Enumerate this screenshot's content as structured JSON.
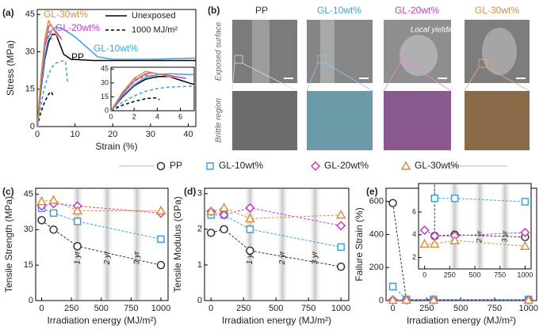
{
  "chart_data": [
    {
      "type": "line",
      "panel": "(a)",
      "xlabel": "Strain (%)",
      "ylabel": "Stress (MPa)",
      "xlim": [
        0,
        42
      ],
      "ylim": [
        0,
        47
      ],
      "xticks": [
        0,
        10,
        20,
        30,
        40
      ],
      "yticks": [
        0,
        15,
        30,
        45
      ],
      "legend": [
        {
          "label": "Unexposed",
          "dashed": false
        },
        {
          "label": "1000 MJ/m²",
          "dashed": true
        }
      ],
      "series": [
        {
          "name": "PP",
          "color": "#000000",
          "unexposed": {
            "x": [
              0,
              1,
              2,
              3,
              4,
              5,
              6,
              7,
              9,
              15,
              25,
              35,
              42
            ],
            "values": [
              0,
              15,
              27,
              34,
              37,
              37,
              33,
              29,
              27,
              26.5,
              26.5,
              26.5,
              26.5
            ]
          },
          "exposed": {
            "x": [
              0,
              1,
              2,
              3,
              3.8,
              4.2
            ],
            "values": [
              0,
              6,
              10,
              13,
              14,
              12
            ]
          }
        },
        {
          "name": "GL-10wt%",
          "color": "#3fa0d8",
          "unexposed": {
            "x": [
              0,
              1,
              2,
              3,
              4,
              5,
              7,
              10,
              13,
              16,
              20,
              30,
              42
            ],
            "values": [
              0,
              16,
              28,
              36,
              39,
              40,
              39,
              36,
              32,
              28,
              27,
              27,
              27.5
            ]
          },
          "exposed": {
            "x": [
              0,
              1,
              2,
              3,
              4,
              5,
              7,
              7.5,
              8
            ],
            "values": [
              0,
              9,
              16,
              21,
              24,
              25.5,
              26.5,
              26,
              18
            ]
          }
        },
        {
          "name": "GL-20wt%",
          "color": "#c43cc4",
          "unexposed": {
            "x": [
              0,
              1,
              2,
              3,
              3.5,
              4,
              5,
              6,
              6.5
            ],
            "values": [
              0,
              18,
              32,
              40,
              41,
              40,
              38,
              36,
              35
            ]
          },
          "exposed": {
            "x": [
              0,
              1,
              2,
              3,
              3.7,
              4
            ],
            "values": [
              0,
              18,
              32,
              38,
              38,
              35
            ]
          }
        },
        {
          "name": "GL-30wt%",
          "color": "#d49040",
          "unexposed": {
            "x": [
              0,
              1,
              2,
              3,
              4,
              5,
              5.5
            ],
            "values": [
              0,
              20,
              35,
              42.5,
              40,
              37,
              36
            ]
          },
          "exposed": {
            "x": [
              0,
              1,
              2,
              3,
              3.5,
              3.8
            ],
            "values": [
              0,
              20,
              34,
              39,
              38,
              35
            ]
          }
        }
      ],
      "inset": {
        "xlim": [
          0,
          7.2
        ],
        "ylim": [
          0,
          47
        ],
        "xticks": [
          0,
          2,
          4,
          6
        ],
        "yticks": [
          0,
          15,
          30,
          45
        ]
      }
    },
    {
      "type": "scatter",
      "panel": "(c)",
      "xlabel": "Irradiation energy (MJ/m²)",
      "ylabel": "Tensile Strength (MPa)",
      "x": [
        0,
        100,
        300,
        1000
      ],
      "xlim": [
        -50,
        1060
      ],
      "ylim": [
        0,
        47.5
      ],
      "xticks": [
        0,
        250,
        500,
        750,
        1000
      ],
      "yticks": [
        0,
        15,
        30,
        45
      ],
      "annotations": [
        {
          "x": 300,
          "text": "1 yr"
        },
        {
          "x": 550,
          "text": "2 yr"
        },
        {
          "x": 800,
          "text": "3 yr"
        }
      ],
      "series": [
        {
          "name": "PP",
          "color": "#333333",
          "marker": "circle",
          "values": [
            34,
            30,
            23,
            15
          ]
        },
        {
          "name": "GL-10wt%",
          "color": "#3fa0d8",
          "marker": "square",
          "values": [
            39,
            37,
            33.5,
            26
          ]
        },
        {
          "name": "GL-20wt%",
          "color": "#c43cc4",
          "marker": "diamond",
          "values": [
            40,
            41,
            40,
            37
          ]
        },
        {
          "name": "GL-30wt%",
          "color": "#d49040",
          "marker": "triangle",
          "values": [
            42,
            42.5,
            38,
            38
          ]
        }
      ]
    },
    {
      "type": "scatter",
      "panel": "(d)",
      "xlabel": "Irradiation energy (MJ/m²)",
      "ylabel": "Tensile Modulus (GPa)",
      "x": [
        0,
        100,
        300,
        1000
      ],
      "xlim": [
        -50,
        1060
      ],
      "ylim": [
        0,
        3.15
      ],
      "xticks": [
        0,
        250,
        500,
        750,
        1000
      ],
      "yticks": [
        0,
        1,
        2,
        3
      ],
      "annotations": [
        {
          "x": 300,
          "text": "1 yr"
        },
        {
          "x": 550,
          "text": "2 yr"
        },
        {
          "x": 800,
          "text": "3 yr"
        }
      ],
      "series": [
        {
          "color": "#333333",
          "marker": "circle",
          "values": [
            1.9,
            2.0,
            1.4,
            0.95
          ]
        },
        {
          "color": "#3fa0d8",
          "marker": "square",
          "values": [
            2.4,
            2.4,
            2.0,
            1.5
          ]
        },
        {
          "color": "#c43cc4",
          "marker": "diamond",
          "values": [
            2.5,
            2.4,
            2.6,
            2.1
          ]
        },
        {
          "color": "#d49040",
          "marker": "triangle",
          "values": [
            2.5,
            2.6,
            2.3,
            2.4
          ]
        }
      ]
    },
    {
      "type": "scatter",
      "panel": "(e)",
      "xlabel": "Irradiation energy (MJ/m²)",
      "ylabel": "Failure Strain (%)",
      "x": [
        0,
        100,
        300,
        1000
      ],
      "xlim": [
        -50,
        1060
      ],
      "ylim": [
        0,
        680
      ],
      "xticks": [
        0,
        250,
        500,
        750,
        1000
      ],
      "yticks": [
        0,
        200,
        400,
        600
      ],
      "series": [
        {
          "color": "#333333",
          "marker": "circle",
          "values": [
            590,
            3.9,
            4.0,
            3.8
          ]
        },
        {
          "color": "#3fa0d8",
          "marker": "square",
          "values": [
            85,
            7.2,
            7.2,
            6.9
          ]
        },
        {
          "color": "#c43cc4",
          "marker": "diamond",
          "values": [
            4.4,
            3.9,
            3.9,
            4.2
          ]
        },
        {
          "color": "#d49040",
          "marker": "triangle",
          "values": [
            3.2,
            3.2,
            3.5,
            3.0
          ]
        }
      ],
      "inset": {
        "xlim": [
          -60,
          1060
        ],
        "ylim": [
          1,
          8.5
        ],
        "xticks": [
          0,
          250,
          500,
          750,
          1000
        ],
        "yticks": [
          2,
          4,
          6
        ],
        "annotations": [
          {
            "x": 300,
            "text": "1 yr"
          },
          {
            "x": 550,
            "text": "2 yr"
          },
          {
            "x": 800,
            "text": "3 yr"
          }
        ]
      }
    }
  ],
  "panel_b": {
    "label": "(b)",
    "columns": [
      "PP",
      "GL-10wt%",
      "GL-20wt%",
      "GL-30wt%"
    ],
    "rows": [
      "Exposed surface",
      "Brittle region"
    ],
    "annotation": "Local yielding"
  }
}
